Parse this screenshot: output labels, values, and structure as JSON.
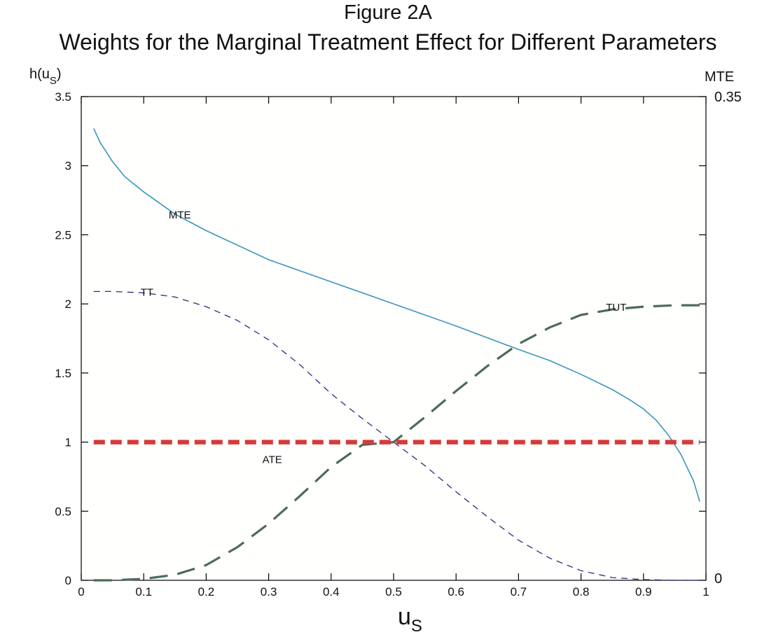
{
  "figure": {
    "title": "Figure 2A",
    "subtitle": "Weights for the Marginal Treatment Effect for Different Parameters"
  },
  "chart_data": {
    "type": "line",
    "title": "Figure 2A",
    "subtitle": "Weights for the Marginal Treatment Effect for Different Parameters",
    "xlabel": "u",
    "xlabel_sub": "S",
    "ylabel": "h(u",
    "ylabel_sub": "S",
    "ylabel_close": ")",
    "y2label": "MTE",
    "xlim": [
      0,
      1
    ],
    "ylim": [
      0,
      3.5
    ],
    "y2_ticks": [
      "0.35",
      "0"
    ],
    "xticks": [
      0,
      0.1,
      0.2,
      0.3,
      0.4,
      0.5,
      0.6,
      0.7,
      0.8,
      0.9,
      1
    ],
    "xtick_labels": [
      "0",
      "0.1",
      "0.2",
      "0.3",
      "0.4",
      "0.5",
      "0.6",
      "0.7",
      "0.8",
      "0.9",
      "1"
    ],
    "yticks": [
      0,
      0.5,
      1,
      1.5,
      2,
      2.5,
      3,
      3.5
    ],
    "ytick_labels": [
      "0",
      "0.5",
      "1",
      "1.5",
      "2",
      "2.5",
      "3",
      "3.5"
    ],
    "grid": false,
    "series": [
      {
        "name": "MTE",
        "color": "#3a95bd",
        "style": "solid",
        "x": [
          0.02,
          0.03,
          0.05,
          0.07,
          0.1,
          0.15,
          0.2,
          0.3,
          0.4,
          0.5,
          0.6,
          0.7,
          0.75,
          0.8,
          0.85,
          0.88,
          0.9,
          0.92,
          0.94,
          0.96,
          0.98,
          0.99
        ],
        "y": [
          3.27,
          3.17,
          3.03,
          2.92,
          2.81,
          2.65,
          2.53,
          2.32,
          2.16,
          2.0,
          1.84,
          1.67,
          1.59,
          1.49,
          1.38,
          1.3,
          1.24,
          1.16,
          1.05,
          0.91,
          0.72,
          0.57
        ]
      },
      {
        "name": "TT",
        "color": "#2c2c80",
        "style": "dashed",
        "x": [
          0.02,
          0.05,
          0.1,
          0.15,
          0.2,
          0.25,
          0.3,
          0.35,
          0.4,
          0.45,
          0.5,
          0.55,
          0.6,
          0.65,
          0.7,
          0.75,
          0.8,
          0.85,
          0.9,
          0.95,
          0.99
        ],
        "y": [
          2.09,
          2.09,
          2.08,
          2.05,
          1.98,
          1.88,
          1.74,
          1.56,
          1.35,
          1.17,
          1.0,
          0.83,
          0.64,
          0.46,
          0.29,
          0.16,
          0.07,
          0.02,
          0.005,
          0.0,
          0.0
        ]
      },
      {
        "name": "TUT",
        "color": "#4c6b58",
        "style": "longdash",
        "x": [
          0.02,
          0.05,
          0.1,
          0.15,
          0.2,
          0.25,
          0.3,
          0.35,
          0.4,
          0.45,
          0.5,
          0.55,
          0.6,
          0.65,
          0.7,
          0.75,
          0.8,
          0.85,
          0.9,
          0.95,
          0.99
        ],
        "y": [
          0.0,
          0.0,
          0.01,
          0.04,
          0.11,
          0.24,
          0.41,
          0.61,
          0.82,
          0.98,
          1.0,
          1.18,
          1.37,
          1.55,
          1.71,
          1.83,
          1.92,
          1.96,
          1.98,
          1.99,
          1.99
        ]
      },
      {
        "name": "ATE",
        "color": "#d63a3a",
        "style": "thickdash",
        "x": [
          0.02,
          0.99
        ],
        "y": [
          1.0,
          1.0
        ]
      }
    ],
    "annotations": [
      {
        "text": "MTE",
        "x": 0.14,
        "y": 2.65
      },
      {
        "text": "TT",
        "x": 0.095,
        "y": 2.09
      },
      {
        "text": "TUT",
        "x": 0.84,
        "y": 1.98
      },
      {
        "text": "ATE",
        "x": 0.29,
        "y": 0.88
      }
    ]
  }
}
